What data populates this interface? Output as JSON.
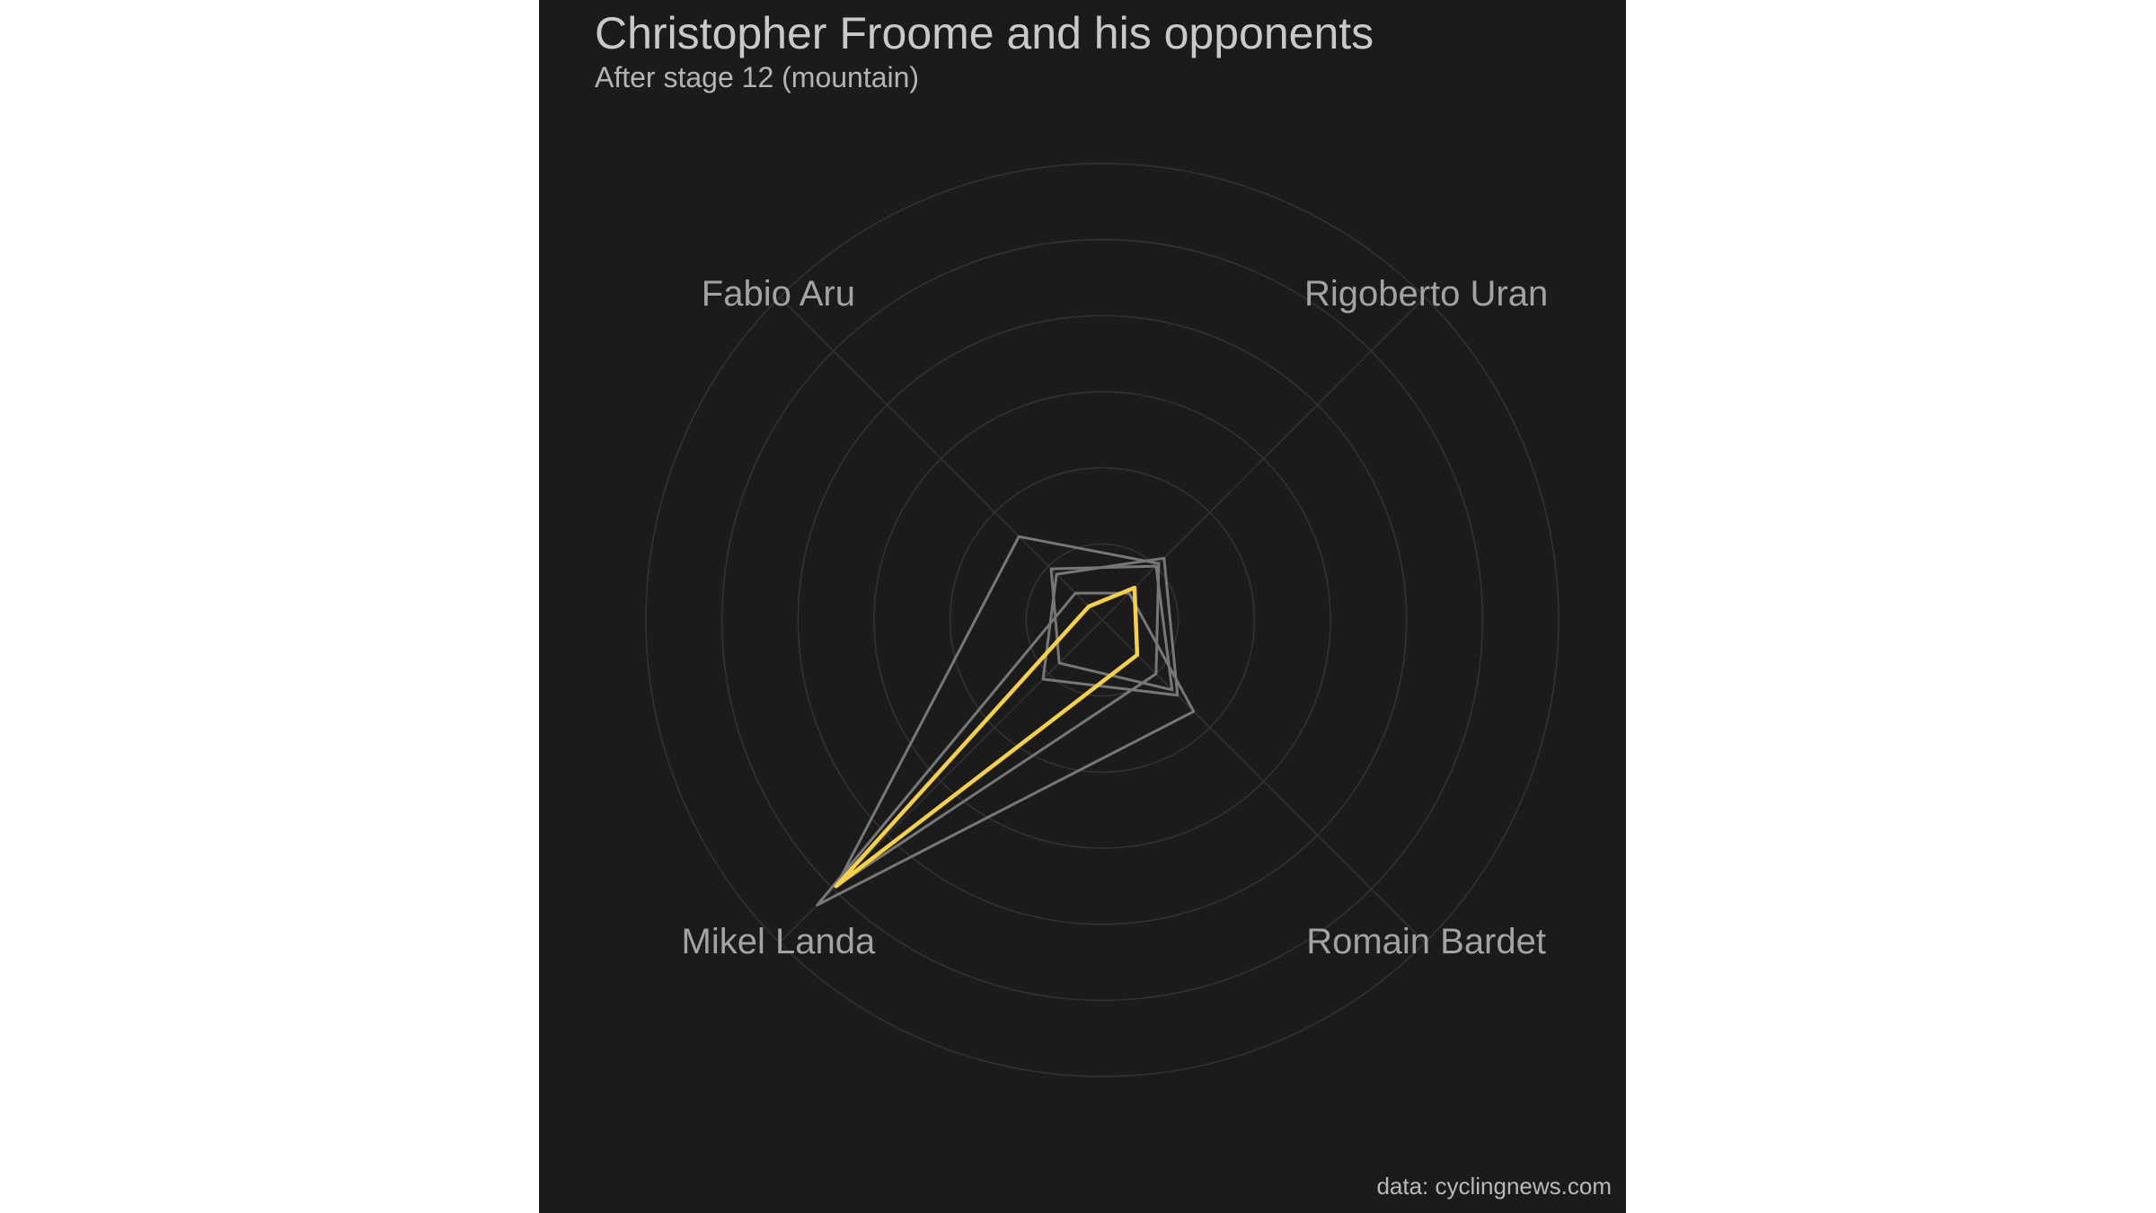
{
  "chart_data": {
    "type": "radar",
    "title": "Christopher Froome and his opponents",
    "subtitle": "After stage 12 (mountain)",
    "caption": "data: cyclingnews.com",
    "axes": [
      "Rigoberto Uran",
      "Romain Bardet",
      "Mikel Landa",
      "Fabio Aru"
    ],
    "range": [
      0,
      6
    ],
    "grid_levels": [
      1,
      2,
      3,
      4,
      5,
      6
    ],
    "grid": true,
    "series": [
      {
        "values": [
          1.05,
          1.0,
          4.95,
          1.55
        ],
        "highlight": false
      },
      {
        "values": [
          0.5,
          1.7,
          5.3,
          0.5
        ],
        "highlight": false
      },
      {
        "values": [
          1.15,
          1.4,
          1.1,
          0.85
        ],
        "highlight": false
      },
      {
        "values": [
          1.0,
          1.3,
          0.8,
          0.95
        ],
        "highlight": false
      },
      {
        "values": [
          0.6,
          0.65,
          4.95,
          0.25
        ],
        "highlight": true
      }
    ],
    "colors": {
      "background": "#1b1b1b",
      "grid": "#333333",
      "other_riders": "#777777",
      "highlight": "#f5d04a"
    }
  }
}
